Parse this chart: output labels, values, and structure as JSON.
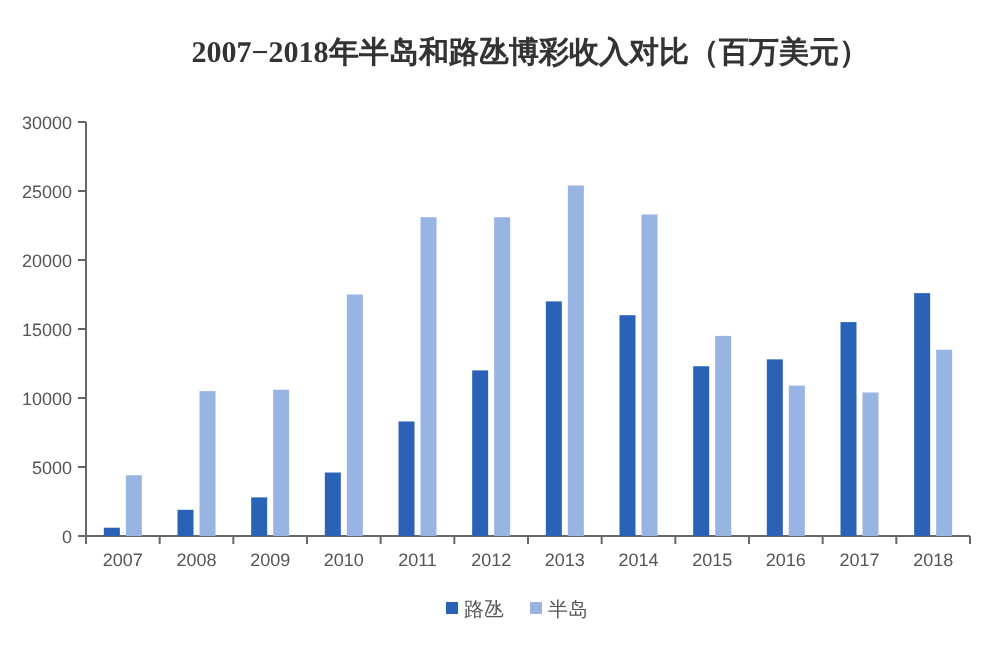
{
  "chart_data": {
    "type": "bar",
    "title": "2007−2018年半岛和路氹博彩收入对比（百万美元）",
    "categories": [
      "2007",
      "2008",
      "2009",
      "2010",
      "2011",
      "2012",
      "2013",
      "2014",
      "2015",
      "2016",
      "2017",
      "2018"
    ],
    "series": [
      {
        "name": "路氹",
        "color": "#2a62b8",
        "values": [
          600,
          1900,
          2800,
          4600,
          8300,
          12000,
          17000,
          16000,
          12300,
          12800,
          15500,
          17600
        ]
      },
      {
        "name": "半岛",
        "color": "#97b4e3",
        "values": [
          4400,
          10500,
          10600,
          17500,
          23100,
          23100,
          25400,
          23300,
          14500,
          10900,
          10400,
          13500
        ]
      }
    ],
    "ylim": [
      0,
      30000
    ],
    "yticks": [
      0,
      5000,
      10000,
      15000,
      20000,
      25000,
      30000
    ],
    "grid": false,
    "legend": "bottom"
  }
}
